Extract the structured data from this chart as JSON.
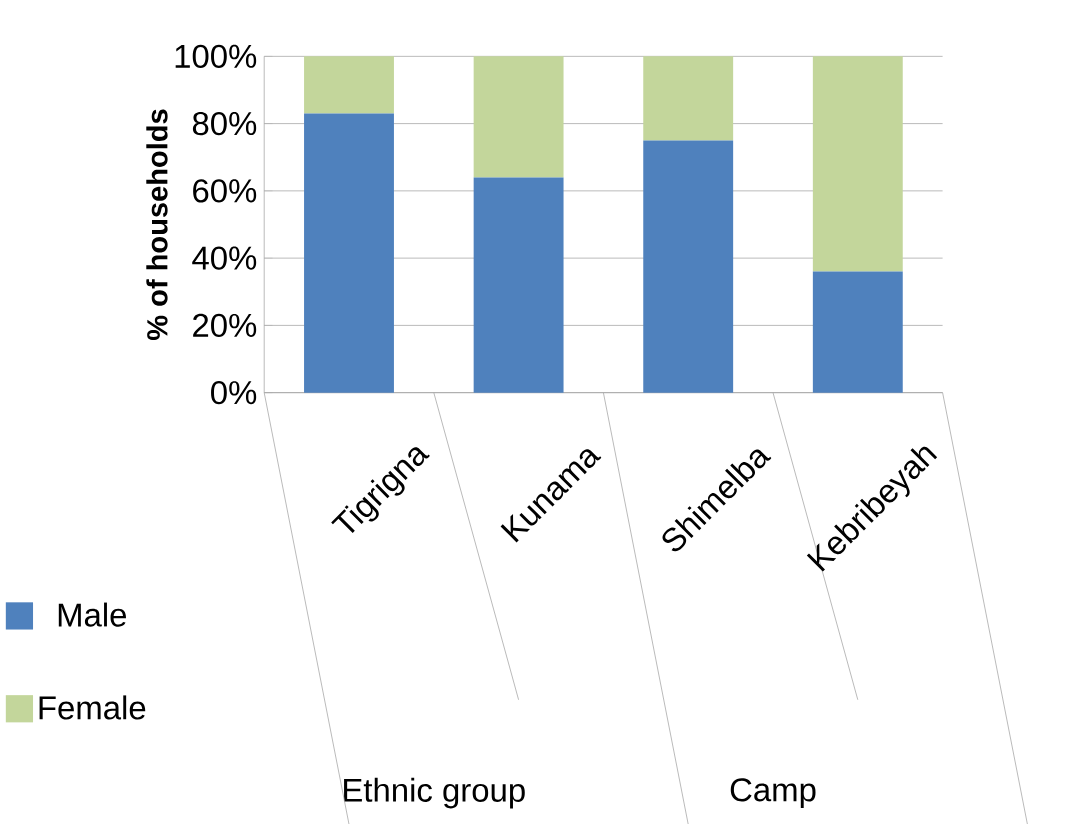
{
  "chart_data": {
    "type": "bar",
    "stacked": true,
    "ylabel": "% of households",
    "categories": [
      "Tigrigna",
      "Kunama",
      "Shimelba",
      "Kebribeyah"
    ],
    "series": [
      {
        "name": "Male",
        "color": "#4f81bd",
        "values": [
          83,
          64,
          75,
          36
        ]
      },
      {
        "name": "Female",
        "color": "#c3d69b",
        "values": [
          17,
          36,
          25,
          64
        ]
      }
    ],
    "ylim": [
      0,
      100
    ],
    "yticks": [
      {
        "value": 0,
        "label": "0%"
      },
      {
        "value": 20,
        "label": "20%"
      },
      {
        "value": 40,
        "label": "40%"
      },
      {
        "value": 60,
        "label": "60%"
      },
      {
        "value": 80,
        "label": "80%"
      },
      {
        "value": 100,
        "label": "100%"
      }
    ],
    "grid": "y",
    "legend": "left",
    "annotations": [
      "Ethnic group",
      "Camp"
    ]
  }
}
